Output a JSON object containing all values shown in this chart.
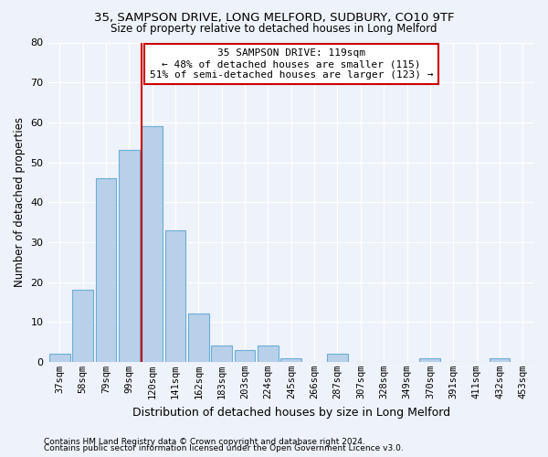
{
  "title1": "35, SAMPSON DRIVE, LONG MELFORD, SUDBURY, CO10 9TF",
  "title2": "Size of property relative to detached houses in Long Melford",
  "xlabel": "Distribution of detached houses by size in Long Melford",
  "ylabel": "Number of detached properties",
  "footnote1": "Contains HM Land Registry data © Crown copyright and database right 2024.",
  "footnote2": "Contains public sector information licensed under the Open Government Licence v3.0.",
  "annotation_line1": "35 SAMPSON DRIVE: 119sqm",
  "annotation_line2": "← 48% of detached houses are smaller (115)",
  "annotation_line3": "51% of semi-detached houses are larger (123) →",
  "bin_labels": [
    "37sqm",
    "58sqm",
    "79sqm",
    "99sqm",
    "120sqm",
    "141sqm",
    "162sqm",
    "183sqm",
    "203sqm",
    "224sqm",
    "245sqm",
    "266sqm",
    "287sqm",
    "307sqm",
    "328sqm",
    "349sqm",
    "370sqm",
    "391sqm",
    "411sqm",
    "432sqm",
    "453sqm"
  ],
  "bar_values": [
    2,
    18,
    46,
    53,
    59,
    33,
    12,
    4,
    3,
    4,
    1,
    0,
    2,
    0,
    0,
    0,
    1,
    0,
    0,
    1,
    0
  ],
  "bar_color": "#b8d0ea",
  "bar_edge_color": "#6aaed6",
  "vline_color": "#cc0000",
  "annotation_box_bg": "#ffffff",
  "annotation_box_edge": "#cc0000",
  "background_color": "#eef2fa",
  "grid_color": "#ffffff",
  "ylim": [
    0,
    80
  ],
  "yticks": [
    0,
    10,
    20,
    30,
    40,
    50,
    60,
    70,
    80
  ],
  "title1_fontsize": 9.5,
  "title2_fontsize": 8.5,
  "xlabel_fontsize": 9,
  "ylabel_fontsize": 8.5,
  "footnote_fontsize": 6.5,
  "annotation_fontsize": 8,
  "tick_fontsize": 7.5
}
